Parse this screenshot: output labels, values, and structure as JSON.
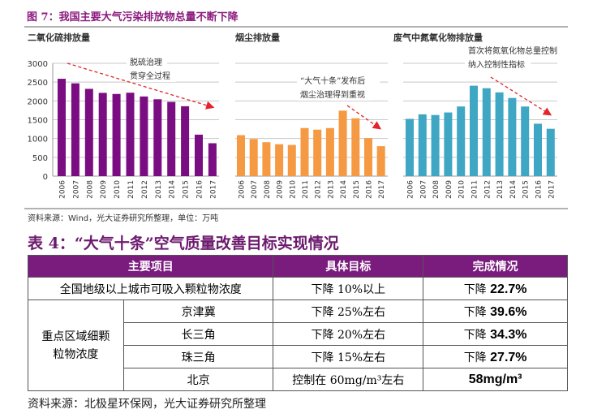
{
  "figure_title": "图 7：我国主要大气污染排放物总量不断下降",
  "figure_source": "资料来源：Wind，光大证券研究所整理，单位：万吨",
  "colors": {
    "so2": "#7b0d82",
    "dust": "#f59a42",
    "nox": "#3fa6c4",
    "arrow": "#e3242b",
    "title": "#8b1c7e",
    "header_bg": "#7a1b7e"
  },
  "chart_data": [
    {
      "type": "bar",
      "title": "二氧化硫排放量",
      "categories": [
        "2006",
        "2007",
        "2008",
        "2009",
        "2010",
        "2011",
        "2012",
        "2013",
        "2014",
        "2015",
        "2016",
        "2017"
      ],
      "values": [
        2589,
        2468,
        2321,
        2214,
        2185,
        2218,
        2118,
        2044,
        1974,
        1859,
        1103,
        875
      ],
      "ylim": [
        0,
        3000
      ],
      "yticks": [
        "0",
        "500",
        "1000",
        "1500",
        "2000",
        "2500",
        "3000"
      ],
      "grid": true,
      "annotation": [
        "脱硫治理",
        "贯穿全过程"
      ]
    },
    {
      "type": "bar",
      "title": "烟尘排放量",
      "categories": [
        "2006",
        "2007",
        "2008",
        "2009",
        "2010",
        "2011",
        "2012",
        "2013",
        "2014",
        "2015",
        "2016",
        "2017"
      ],
      "values": [
        1089,
        986,
        902,
        848,
        829,
        1279,
        1236,
        1278,
        1741,
        1538,
        1011,
        796
      ],
      "ylim": [
        0,
        3000
      ],
      "grid": true,
      "annotation": [
        "“大气十条”发布后",
        "烟尘治理得到重视"
      ]
    },
    {
      "type": "bar",
      "title": "废气中氮氧化物排放量",
      "categories": [
        "2006",
        "2007",
        "2008",
        "2009",
        "2010",
        "2011",
        "2012",
        "2013",
        "2014",
        "2015",
        "2016",
        "2017"
      ],
      "values": [
        1523,
        1643,
        1625,
        1693,
        1852,
        2404,
        2338,
        2227,
        2078,
        1851,
        1394,
        1259
      ],
      "ylim": [
        0,
        3000
      ],
      "grid": true,
      "annotation": [
        "首次将氮氧化物总量控制",
        "纳入控制性指标"
      ]
    }
  ],
  "table": {
    "title": "表 4：“大气十条”空气质量改善目标实现情况",
    "headers": [
      "主要项目",
      "具体目标",
      "完成情况"
    ],
    "row1": {
      "item": "全国地级以上城市可吸入颗粒物浓度",
      "target": "下降 10%以上",
      "result_prefix": "下降",
      "result": "22.7%"
    },
    "group_label": "重点区域细颗粒物浓度",
    "rows": [
      {
        "region": "京津冀",
        "target": "下降 25%左右",
        "result_prefix": "下降",
        "result": "39.6%"
      },
      {
        "region": "长三角",
        "target": "下降 20%左右",
        "result_prefix": "下降",
        "result": "34.3%"
      },
      {
        "region": "珠三角",
        "target": "下降 15%左右",
        "result_prefix": "下降",
        "result": "27.7%"
      },
      {
        "region": "北京",
        "target": "控制在 60mg/m³左右",
        "result_prefix": "",
        "result": "58mg/m³"
      }
    ],
    "source": "资料来源：北极星环保网，光大证券研究所整理"
  }
}
